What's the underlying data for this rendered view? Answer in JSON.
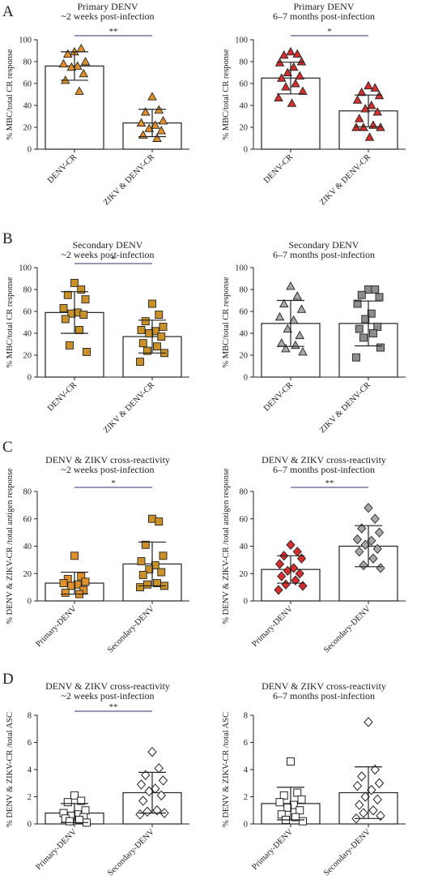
{
  "panel_labels": [
    "A",
    "B",
    "C",
    "D"
  ],
  "colors": {
    "primary_dengue_orange": "#e0902a",
    "primary_late_red": "#d42f2f",
    "secondary_gold": "#c99128",
    "secondary_grey": "#a8a8a8",
    "secondary_dark_grey": "#8c8c8c",
    "white_marker": "#ffffff",
    "sig_bar_navy": "#2e3470"
  },
  "chart_data": [
    {
      "id": "A1",
      "row": 0,
      "col": 0,
      "type": "bar",
      "title": [
        "Primary DENV",
        "~2 weeks post-infection"
      ],
      "ylabel": "% MBC/total CR response",
      "ylim": [
        0,
        100
      ],
      "yticks": [
        0,
        20,
        40,
        60,
        80,
        100
      ],
      "categories": [
        "DENV-CR",
        "ZIKV & DENV-CR"
      ],
      "values": [
        76,
        24
      ],
      "sd": [
        13,
        12.5
      ],
      "marker": "triangle",
      "marker_color": "#e0902a",
      "points": [
        [
          89,
          92,
          87,
          80,
          78,
          76,
          75,
          69,
          63,
          53
        ],
        [
          48,
          36,
          34,
          26,
          24,
          22,
          19,
          17,
          13,
          10
        ]
      ],
      "significance": "**"
    },
    {
      "id": "A2",
      "row": 0,
      "col": 1,
      "type": "bar",
      "title": [
        "Primary DENV",
        "6–7 months post-infection"
      ],
      "ylabel": "% MBC/total CR response",
      "ylim": [
        0,
        100
      ],
      "yticks": [
        0,
        20,
        40,
        60,
        80,
        100
      ],
      "categories": [
        "DENV-CR",
        "ZIKV & DENV-CR"
      ],
      "values": [
        65,
        35
      ],
      "sd": [
        14.5,
        14.5
      ],
      "marker": "triangle",
      "marker_color": "#d42f2f",
      "points": [
        [
          89,
          87,
          86,
          80,
          79,
          75,
          70,
          67,
          65,
          60,
          57,
          53,
          47,
          42
        ],
        [
          58,
          56,
          52,
          49,
          45,
          40,
          37,
          34,
          28,
          22,
          20,
          20,
          20,
          11
        ]
      ],
      "significance": "*"
    },
    {
      "id": "B1",
      "row": 1,
      "col": 0,
      "type": "bar",
      "title": [
        "Secondary DENV",
        "~2 weeks post-infection"
      ],
      "ylabel": "% MBC/total CR response",
      "ylim": [
        0,
        100
      ],
      "yticks": [
        0,
        20,
        40,
        60,
        80,
        100
      ],
      "categories": [
        "DENV-CR",
        "ZIKV & DENV-CR"
      ],
      "values": [
        59,
        37
      ],
      "sd": [
        19,
        15
      ],
      "marker": "square",
      "marker_color": "#c99128",
      "points": [
        [
          86,
          80,
          75,
          71,
          63,
          59,
          58,
          57,
          53,
          43,
          29,
          23
        ],
        [
          67,
          57,
          51,
          46,
          43,
          42,
          40,
          37,
          31,
          28,
          24,
          22,
          14
        ]
      ],
      "significance": "*"
    },
    {
      "id": "B2",
      "row": 1,
      "col": 1,
      "type": "bar",
      "title": [
        "Secondary DENV",
        "6–7 months post-infection"
      ],
      "ylabel": "% MBC/total CR response",
      "ylim": [
        0,
        100
      ],
      "yticks": [
        0,
        20,
        40,
        60,
        80,
        100
      ],
      "categories": [
        "DENV-CR",
        "ZIKV & DENV-CR"
      ],
      "values": [
        49,
        49
      ],
      "sd": [
        21,
        20.5
      ],
      "marker": "triangle_square",
      "marker_color": "#a8a8a8",
      "points": [
        [
          83,
          74,
          67,
          62,
          55,
          52,
          44,
          38,
          31,
          29,
          26,
          23
        ],
        [
          80,
          80,
          75,
          73,
          67,
          58,
          53,
          46,
          44,
          40,
          36,
          27,
          18
        ]
      ],
      "significance": ""
    },
    {
      "id": "C1",
      "row": 2,
      "col": 0,
      "type": "bar",
      "title": [
        "DENV & ZIKV cross-reactivity",
        "~2 weeks post-infection"
      ],
      "ylabel": "% DENV & ZIKV-CR /total antigen response",
      "ylim": [
        0,
        80
      ],
      "yticks": [
        0,
        20,
        40,
        60,
        80
      ],
      "categories": [
        "Primary-DENV",
        "Secondary-DENV"
      ],
      "values": [
        13,
        27
      ],
      "sd": [
        8,
        16
      ],
      "marker": "square",
      "marker_color": "#e0902a",
      "marker2_color": "#c99128",
      "points": [
        [
          33,
          18,
          16,
          14,
          13,
          12,
          11,
          8,
          6,
          5
        ],
        [
          60,
          58,
          41,
          33,
          29,
          26,
          23,
          21,
          19,
          13,
          12,
          11,
          10
        ]
      ],
      "significance": "*"
    },
    {
      "id": "C2",
      "row": 2,
      "col": 1,
      "type": "bar",
      "title": [
        "DENV & ZIKV cross-reactivity",
        "6–7 months post-infection"
      ],
      "ylabel": "% DENV & ZIKV-CR /total antigen response",
      "ylim": [
        0,
        80
      ],
      "yticks": [
        0,
        20,
        40,
        60,
        80
      ],
      "categories": [
        "Primary-DENV",
        "Secondary-DENV"
      ],
      "values": [
        23,
        40
      ],
      "sd": [
        10,
        15
      ],
      "marker": "diamond",
      "marker_color": "#d42f2f",
      "marker2_color": "#a8a8a8",
      "points": [
        [
          41,
          36,
          33,
          31,
          27,
          24,
          22,
          20,
          18,
          15,
          12,
          11,
          8
        ],
        [
          68,
          60,
          53,
          50,
          45,
          44,
          41,
          38,
          36,
          31,
          26,
          24
        ]
      ],
      "significance": "**"
    },
    {
      "id": "D1",
      "row": 3,
      "col": 0,
      "type": "bar",
      "title": [
        "DENV & ZIKV cross-reactivity",
        "~2 weeks post-infection"
      ],
      "ylabel": "% DENV & ZIKV-CR /total ASC",
      "ylim": [
        0,
        8
      ],
      "yticks": [
        0,
        2,
        4,
        6,
        8
      ],
      "categories": [
        "Primary-DENV",
        "Secondary-DENV"
      ],
      "values": [
        0.8,
        2.3
      ],
      "sd": [
        0.7,
        1.5
      ],
      "marker": "square_open",
      "marker2": "diamond_open",
      "points": [
        [
          2.1,
          1.7,
          1.6,
          1.0,
          0.8,
          0.7,
          0.6,
          0.5,
          0.4,
          0.3,
          0.2,
          0.1
        ],
        [
          5.3,
          4.1,
          3.6,
          3.2,
          2.9,
          2.6,
          2.4,
          2.1,
          1.7,
          1.0,
          0.9,
          0.8,
          0.7
        ]
      ],
      "significance": "**"
    },
    {
      "id": "D2",
      "row": 3,
      "col": 1,
      "type": "bar",
      "title": [
        "DENV & ZIKV cross-reactivity",
        "6–7 months post-infection"
      ],
      "ylabel": "% DENV & ZIKV-CR /total ASC",
      "ylim": [
        0,
        8
      ],
      "yticks": [
        0,
        2,
        4,
        6,
        8
      ],
      "categories": [
        "Primary-DENV",
        "Secondary-DENV"
      ],
      "values": [
        1.5,
        2.3
      ],
      "sd": [
        1.2,
        1.9
      ],
      "marker": "square_open",
      "marker2": "diamond_open",
      "points": [
        [
          4.6,
          2.3,
          2.1,
          1.8,
          1.6,
          1.4,
          1.2,
          1.0,
          0.7,
          0.5,
          0.3,
          0.2
        ],
        [
          7.5,
          4.0,
          3.5,
          3.0,
          2.8,
          2.5,
          2.0,
          1.8,
          1.4,
          1.0,
          0.8,
          0.6,
          0.4
        ]
      ],
      "significance": ""
    }
  ]
}
